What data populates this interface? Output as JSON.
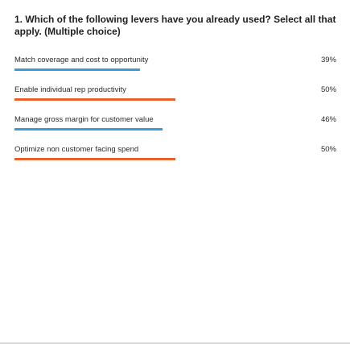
{
  "question": {
    "text": "1. Which of the following levers have you already used? Select all that apply. (Multiple choice)"
  },
  "colors": {
    "blue": "#3b9ad9",
    "orange": "#e8612c"
  },
  "chart_data": {
    "type": "bar",
    "orientation": "horizontal",
    "categories": [
      "Match coverage and cost to opportunity",
      "Enable individual rep productivity",
      "Manage gross margin for customer value",
      "Optimize non customer facing spend"
    ],
    "values": [
      39,
      50,
      46,
      50
    ],
    "value_labels": [
      "39%",
      "50%",
      "46%",
      "50%"
    ],
    "bar_colors": [
      "#3b9ad9",
      "#e8612c",
      "#3b9ad9",
      "#e8612c"
    ],
    "xlim": [
      0,
      100
    ],
    "unit": "%"
  }
}
